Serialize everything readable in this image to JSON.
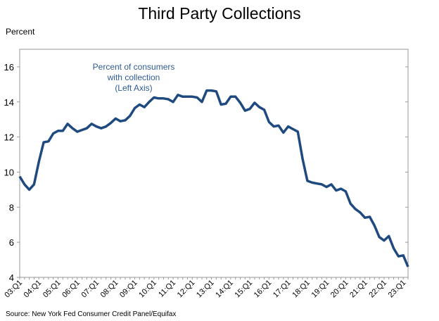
{
  "chart_data": {
    "type": "line",
    "title": "Third Party Collections",
    "ylabel": "Percent",
    "ylim": [
      4,
      17
    ],
    "yticks": [
      4,
      6,
      8,
      10,
      12,
      14,
      16
    ],
    "grid": false,
    "source": "Source: New York Fed Consumer Credit Panel/Equifax",
    "annotation": [
      "Percent of consumers",
      "with collection",
      "(Left Axis)"
    ],
    "line_color": "#1f4a80",
    "annotation_color": "#2f5b95",
    "xtick_labels": [
      "03:Q1",
      "04:Q1",
      "05:Q1",
      "06:Q1",
      "07:Q1",
      "08:Q1",
      "09:Q1",
      "10:Q1",
      "11:Q1",
      "12:Q1",
      "13:Q1",
      "14:Q1",
      "15:Q1",
      "16:Q1",
      "17:Q1",
      "18:Q1",
      "19:Q1",
      "20:Q1",
      "21:Q1",
      "22:Q1",
      "23:Q1"
    ],
    "series": [
      {
        "values": [
          9.75,
          9.3,
          9.0,
          9.3,
          10.6,
          11.7,
          11.75,
          12.2,
          12.35,
          12.35,
          12.75,
          12.5,
          12.3,
          12.4,
          12.5,
          12.75,
          12.6,
          12.5,
          12.6,
          12.8,
          13.05,
          12.9,
          12.95,
          13.2,
          13.65,
          13.85,
          13.7,
          14.0,
          14.25,
          14.2,
          14.2,
          14.15,
          14.0,
          14.4,
          14.3,
          14.3,
          14.3,
          14.25,
          14.0,
          14.65,
          14.65,
          14.6,
          13.85,
          13.9,
          14.3,
          14.3,
          13.95,
          13.5,
          13.6,
          13.95,
          13.7,
          13.55,
          12.85,
          12.6,
          12.65,
          12.25,
          12.6,
          12.45,
          12.3,
          10.75,
          9.5,
          9.4,
          9.35,
          9.3,
          9.15,
          9.3,
          8.95,
          9.05,
          8.9,
          8.2,
          7.9,
          7.7,
          7.4,
          7.45,
          6.95,
          6.3,
          6.1,
          6.35,
          5.65,
          5.2,
          5.25,
          4.6
        ]
      }
    ]
  }
}
